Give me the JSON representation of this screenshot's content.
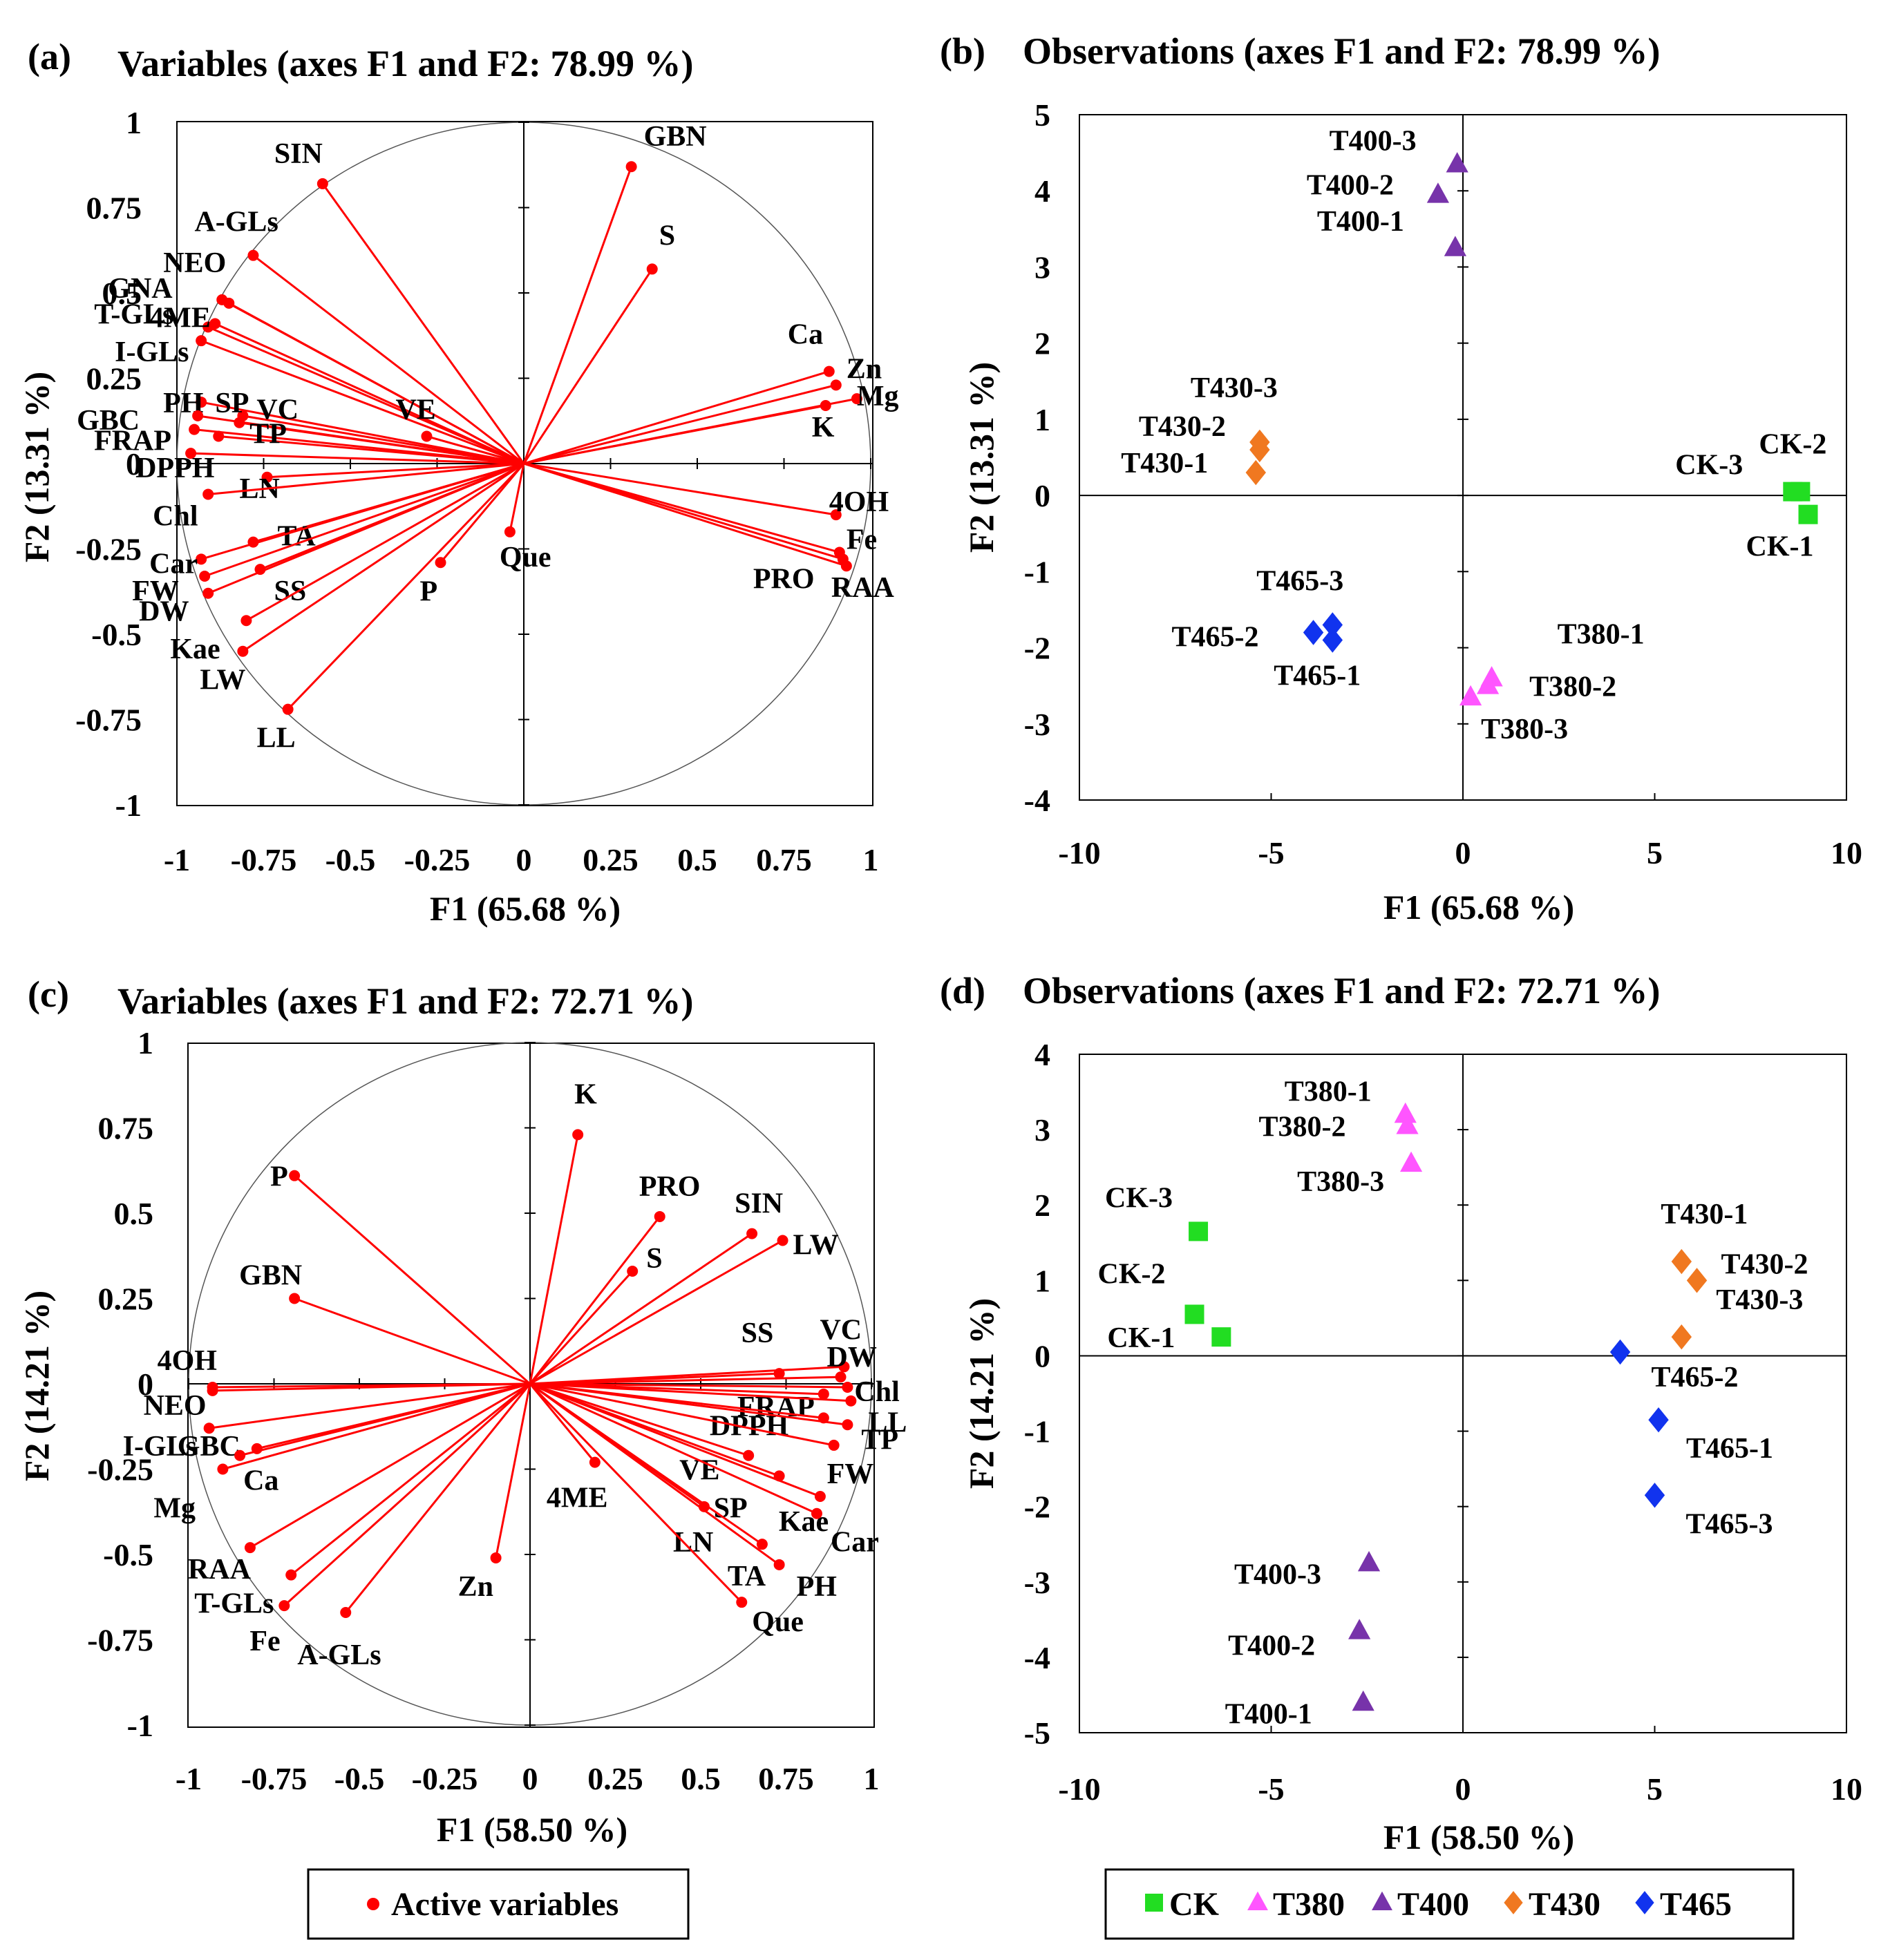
{
  "figure_legend": {
    "active_variables": "Active variables",
    "groups": [
      {
        "name": "CK",
        "color": "#22dd22",
        "marker": "square"
      },
      {
        "name": "T380",
        "color": "#ff55ff",
        "marker": "triangle"
      },
      {
        "name": "T400",
        "color": "#7733aa",
        "marker": "triangle"
      },
      {
        "name": "T430",
        "color": "#f07820",
        "marker": "diamond"
      },
      {
        "name": "T465",
        "color": "#1133ee",
        "marker": "diamond"
      }
    ]
  },
  "chart_data": [
    {
      "panel": "a",
      "type": "scatter",
      "subtype": "pca-loading-circle",
      "panel_label": "(a)",
      "title": "Variables (axes F1 and F2: 78.99 %)",
      "xlabel": "F1 (65.68 %)",
      "ylabel": "F2 (13.31 %)",
      "xlim": [
        -1,
        1
      ],
      "ylim": [
        -1,
        1
      ],
      "xticks": [
        "-1",
        "-0.75",
        "-0.5",
        "-0.25",
        "0",
        "0.25",
        "0.5",
        "0.75",
        "1"
      ],
      "yticks": [
        "-1",
        "-0.75",
        "-0.5",
        "-0.25",
        "0",
        "0.25",
        "0.5",
        "0.75",
        "1"
      ],
      "color": "#ff0000",
      "points": [
        {
          "label": "SIN",
          "x": -0.58,
          "y": 0.82
        },
        {
          "label": "A-GLs",
          "x": -0.78,
          "y": 0.61
        },
        {
          "label": "GNA",
          "x": -0.85,
          "y": 0.47
        },
        {
          "label": "NEO",
          "x": -0.87,
          "y": 0.48
        },
        {
          "label": "T-GLs",
          "x": -0.89,
          "y": 0.41
        },
        {
          "label": "4ME",
          "x": -0.91,
          "y": 0.4
        },
        {
          "label": "I-GLs",
          "x": -0.93,
          "y": 0.36
        },
        {
          "label": "PH",
          "x": -0.93,
          "y": 0.18
        },
        {
          "label": "GBC",
          "x": -0.94,
          "y": 0.14
        },
        {
          "label": "SP",
          "x": -0.81,
          "y": 0.14
        },
        {
          "label": "VC",
          "x": -0.82,
          "y": 0.12
        },
        {
          "label": "FRAP",
          "x": -0.95,
          "y": 0.1
        },
        {
          "label": "TP",
          "x": -0.88,
          "y": 0.08
        },
        {
          "label": "VE",
          "x": -0.28,
          "y": 0.08
        },
        {
          "label": "DPPH",
          "x": -0.96,
          "y": 0.03
        },
        {
          "label": "LN",
          "x": -0.74,
          "y": -0.04
        },
        {
          "label": "Chl",
          "x": -0.91,
          "y": -0.09
        },
        {
          "label": "TA",
          "x": -0.78,
          "y": -0.23
        },
        {
          "label": "Car",
          "x": -0.93,
          "y": -0.28
        },
        {
          "label": "FW",
          "x": -0.92,
          "y": -0.33
        },
        {
          "label": "SS",
          "x": -0.76,
          "y": -0.31
        },
        {
          "label": "DW",
          "x": -0.91,
          "y": -0.38
        },
        {
          "label": "Kae",
          "x": -0.8,
          "y": -0.46
        },
        {
          "label": "LW",
          "x": -0.81,
          "y": -0.55
        },
        {
          "label": "LL",
          "x": -0.68,
          "y": -0.72
        },
        {
          "label": "P",
          "x": -0.24,
          "y": -0.29
        },
        {
          "label": "Que",
          "x": -0.04,
          "y": -0.2
        },
        {
          "label": "GBN",
          "x": 0.31,
          "y": 0.87
        },
        {
          "label": "S",
          "x": 0.37,
          "y": 0.57
        },
        {
          "label": "Ca",
          "x": 0.88,
          "y": 0.27
        },
        {
          "label": "Zn",
          "x": 0.9,
          "y": 0.23
        },
        {
          "label": "Mg",
          "x": 0.96,
          "y": 0.19
        },
        {
          "label": "K",
          "x": 0.87,
          "y": 0.17
        },
        {
          "label": "4OH",
          "x": 0.9,
          "y": -0.15
        },
        {
          "label": "Fe",
          "x": 0.91,
          "y": -0.26
        },
        {
          "label": "PRO",
          "x": 0.92,
          "y": -0.28
        },
        {
          "label": "RAA",
          "x": 0.93,
          "y": -0.3
        }
      ]
    },
    {
      "panel": "b",
      "type": "scatter",
      "subtype": "pca-scores",
      "panel_label": "(b)",
      "title": "Observations (axes F1 and F2: 78.99 %)",
      "xlabel": "F1 (65.68 %)",
      "ylabel": "F2 (13.31 %)",
      "xlim": [
        -10,
        10
      ],
      "ylim": [
        -4,
        5
      ],
      "xticks": [
        "-10",
        "-5",
        "0",
        "5",
        "10"
      ],
      "yticks": [
        "-4",
        "-3",
        "-2",
        "-1",
        "0",
        "1",
        "2",
        "3",
        "4",
        "5"
      ],
      "series": [
        {
          "name": "CK",
          "points": [
            {
              "label": "CK-1",
              "x": 9.0,
              "y": -0.25
            },
            {
              "label": "CK-2",
              "x": 8.8,
              "y": 0.05
            },
            {
              "label": "CK-3",
              "x": 8.6,
              "y": 0.05
            }
          ]
        },
        {
          "name": "T380",
          "points": [
            {
              "label": "T380-1",
              "x": 0.75,
              "y": -2.4
            },
            {
              "label": "T380-2",
              "x": 0.65,
              "y": -2.5
            },
            {
              "label": "T380-3",
              "x": 0.2,
              "y": -2.65
            }
          ]
        },
        {
          "name": "T400",
          "points": [
            {
              "label": "T400-1",
              "x": -0.2,
              "y": 3.25
            },
            {
              "label": "T400-2",
              "x": -0.65,
              "y": 3.95
            },
            {
              "label": "T400-3",
              "x": -0.15,
              "y": 4.35
            }
          ]
        },
        {
          "name": "T430",
          "points": [
            {
              "label": "T430-1",
              "x": -5.4,
              "y": 0.3
            },
            {
              "label": "T430-2",
              "x": -5.3,
              "y": 0.6
            },
            {
              "label": "T430-3",
              "x": -5.3,
              "y": 0.7
            }
          ]
        },
        {
          "name": "T465",
          "points": [
            {
              "label": "T465-1",
              "x": -3.4,
              "y": -1.9
            },
            {
              "label": "T465-2",
              "x": -3.9,
              "y": -1.8
            },
            {
              "label": "T465-3",
              "x": -3.4,
              "y": -1.7
            }
          ]
        }
      ]
    },
    {
      "panel": "c",
      "type": "scatter",
      "subtype": "pca-loading-circle",
      "panel_label": "(c)",
      "title": "Variables (axes F1 and F2: 72.71 %)",
      "xlabel": "F1 (58.50 %)",
      "ylabel": "F2 (14.21 %)",
      "xlim": [
        -1,
        1
      ],
      "ylim": [
        -1,
        1
      ],
      "xticks": [
        "-1",
        "-0.75",
        "-0.5",
        "-0.25",
        "0",
        "0.25",
        "0.5",
        "0.75",
        "1"
      ],
      "yticks": [
        "-1",
        "-0.75",
        "-0.5",
        "-0.25",
        "0",
        "0.25",
        "0.5",
        "0.75",
        "1"
      ],
      "color": "#ff0000",
      "points": [
        {
          "label": "K",
          "x": 0.14,
          "y": 0.73
        },
        {
          "label": "PRO",
          "x": 0.38,
          "y": 0.49
        },
        {
          "label": "S",
          "x": 0.3,
          "y": 0.33
        },
        {
          "label": "SIN",
          "x": 0.65,
          "y": 0.44
        },
        {
          "label": "LW",
          "x": 0.74,
          "y": 0.42
        },
        {
          "label": "SS",
          "x": 0.73,
          "y": 0.03
        },
        {
          "label": "VC",
          "x": 0.92,
          "y": 0.05
        },
        {
          "label": "DW",
          "x": 0.91,
          "y": 0.02
        },
        {
          "label": "Chl",
          "x": 0.93,
          "y": -0.01
        },
        {
          "label": "FRAP",
          "x": 0.86,
          "y": -0.03
        },
        {
          "label": "LL",
          "x": 0.94,
          "y": -0.05
        },
        {
          "label": "DPPH",
          "x": 0.86,
          "y": -0.1
        },
        {
          "label": "TP",
          "x": 0.93,
          "y": -0.12
        },
        {
          "label": "FW",
          "x": 0.89,
          "y": -0.18
        },
        {
          "label": "VE",
          "x": 0.64,
          "y": -0.21
        },
        {
          "label": "Kae",
          "x": 0.85,
          "y": -0.33
        },
        {
          "label": "SP",
          "x": 0.73,
          "y": -0.27
        },
        {
          "label": "Car",
          "x": 0.84,
          "y": -0.38
        },
        {
          "label": "LN",
          "x": 0.51,
          "y": -0.36
        },
        {
          "label": "TA",
          "x": 0.68,
          "y": -0.47
        },
        {
          "label": "PH",
          "x": 0.73,
          "y": -0.53
        },
        {
          "label": "Que",
          "x": 0.62,
          "y": -0.64
        },
        {
          "label": "4ME",
          "x": 0.19,
          "y": -0.23
        },
        {
          "label": "Zn",
          "x": -0.1,
          "y": -0.51
        },
        {
          "label": "P",
          "x": -0.69,
          "y": 0.61
        },
        {
          "label": "GBN",
          "x": -0.69,
          "y": 0.25
        },
        {
          "label": "4OH",
          "x": -0.93,
          "y": -0.01
        },
        {
          "label": "NEO",
          "x": -0.93,
          "y": -0.02
        },
        {
          "label": "I-GLs",
          "x": -0.94,
          "y": -0.13
        },
        {
          "label": "GBC",
          "x": -0.8,
          "y": -0.19
        },
        {
          "label": "Ca",
          "x": -0.85,
          "y": -0.21
        },
        {
          "label": "Mg",
          "x": -0.9,
          "y": -0.25
        },
        {
          "label": "RAA",
          "x": -0.82,
          "y": -0.48
        },
        {
          "label": "T-GLs",
          "x": -0.7,
          "y": -0.56
        },
        {
          "label": "Fe",
          "x": -0.72,
          "y": -0.65
        },
        {
          "label": "A-GLs",
          "x": -0.54,
          "y": -0.67
        }
      ]
    },
    {
      "panel": "d",
      "type": "scatter",
      "subtype": "pca-scores",
      "panel_label": "(d)",
      "title": "Observations (axes F1 and F2: 72.71 %)",
      "xlabel": "F1 (58.50 %)",
      "ylabel": "F2 (14.21 %)",
      "xlim": [
        -10,
        10
      ],
      "ylim": [
        -5,
        4
      ],
      "xticks": [
        "-10",
        "-5",
        "0",
        "5",
        "10"
      ],
      "yticks": [
        "-5",
        "-4",
        "-3",
        "-2",
        "-1",
        "0",
        "1",
        "2",
        "3",
        "4"
      ],
      "series": [
        {
          "name": "CK",
          "points": [
            {
              "label": "CK-1",
              "x": -6.3,
              "y": 0.25
            },
            {
              "label": "CK-2",
              "x": -7.0,
              "y": 0.55
            },
            {
              "label": "CK-3",
              "x": -6.9,
              "y": 1.65
            }
          ]
        },
        {
          "name": "T380",
          "points": [
            {
              "label": "T380-1",
              "x": -1.5,
              "y": 3.2
            },
            {
              "label": "T380-2",
              "x": -1.45,
              "y": 3.05
            },
            {
              "label": "T380-3",
              "x": -1.35,
              "y": 2.55
            }
          ]
        },
        {
          "name": "T400",
          "points": [
            {
              "label": "T400-1",
              "x": -2.6,
              "y": -4.6
            },
            {
              "label": "T400-2",
              "x": -2.7,
              "y": -3.65
            },
            {
              "label": "T400-3",
              "x": -2.45,
              "y": -2.75
            }
          ]
        },
        {
          "name": "T430",
          "points": [
            {
              "label": "T430-1",
              "x": 5.7,
              "y": 1.25
            },
            {
              "label": "T430-2",
              "x": 6.1,
              "y": 1.0
            },
            {
              "label": "T430-3",
              "x": 5.7,
              "y": 0.25
            }
          ]
        },
        {
          "name": "T465",
          "points": [
            {
              "label": "T465-1",
              "x": 5.1,
              "y": -0.85
            },
            {
              "label": "T465-2",
              "x": 4.1,
              "y": 0.05
            },
            {
              "label": "T465-3",
              "x": 5.0,
              "y": -1.85
            }
          ]
        }
      ]
    }
  ]
}
